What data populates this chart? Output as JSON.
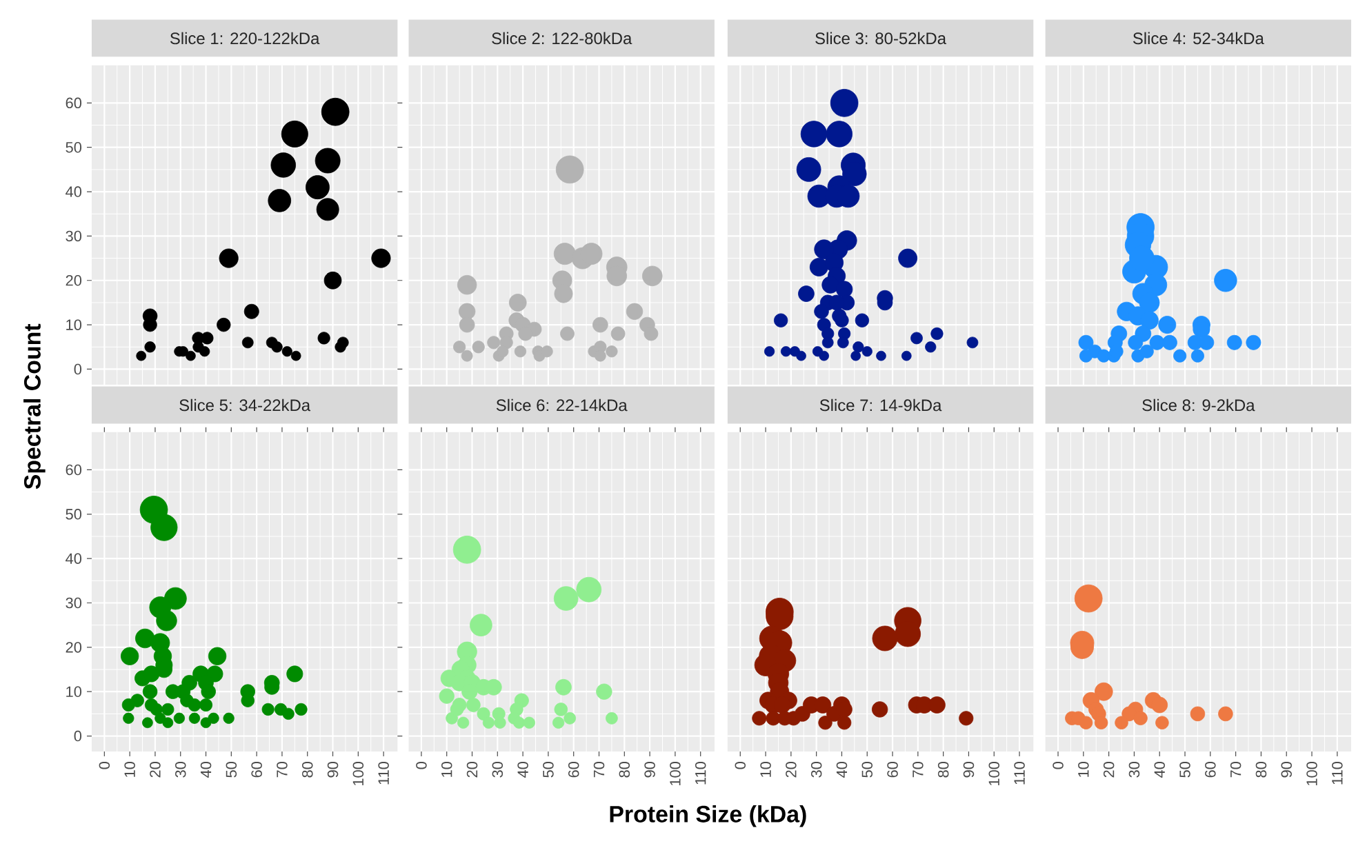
{
  "chart_data": [
    {
      "type": "bubble",
      "title": "Slice 1: 220-122kDa",
      "ylabel": "Spectral Count",
      "color": "#000000",
      "grid": true,
      "tick_labels": "y",
      "xlim": [
        -5,
        115.5
      ],
      "ylim": [
        -3.5,
        68.5
      ],
      "xticks": [
        0,
        10,
        20,
        30,
        40,
        50,
        60,
        70,
        80,
        90,
        100,
        110
      ],
      "yticks": [
        0,
        10,
        20,
        30,
        40,
        50,
        60
      ],
      "x": [
        91,
        75,
        70.5,
        88,
        84,
        69,
        88,
        49,
        109,
        90,
        58,
        47,
        18,
        18,
        18,
        14.5,
        29.5,
        31,
        34,
        37,
        40.5,
        37,
        39.5,
        56.5,
        66,
        68,
        72,
        75.5,
        86.5,
        94,
        93
      ],
      "values": [
        58,
        53,
        46,
        47,
        41,
        38,
        36,
        25,
        25,
        20,
        13,
        10,
        12,
        10,
        5,
        3,
        4,
        4,
        3,
        7,
        7,
        5,
        4,
        6,
        6,
        5,
        4,
        3,
        7,
        6,
        5
      ],
      "sizes": [
        1,
        0.92,
        0.8,
        0.82,
        0.73,
        0.68,
        0.65,
        0.47,
        0.47,
        0.39,
        0.28,
        0.24,
        0.27,
        0.24,
        0.15,
        0.12,
        0.13,
        0.13,
        0.12,
        0.19,
        0.19,
        0.15,
        0.13,
        0.16,
        0.16,
        0.15,
        0.13,
        0.12,
        0.19,
        0.16,
        0.15
      ]
    },
    {
      "type": "bubble",
      "title": "Slice 2: 122-80kDa",
      "color": "#B3B3B3",
      "grid": true,
      "tick_labels": false,
      "xlim": [
        -5,
        115.5
      ],
      "ylim": [
        -3.5,
        68.5
      ],
      "xticks": [
        0,
        10,
        20,
        30,
        40,
        50,
        60,
        70,
        80,
        90,
        100,
        110
      ],
      "yticks": [
        0,
        10,
        20,
        30,
        40,
        50,
        60
      ],
      "x": [
        58.5,
        56.5,
        63.5,
        67,
        77,
        77,
        91,
        55.5,
        56,
        18,
        18,
        18,
        38,
        37.5,
        40,
        44.5,
        41,
        33.5,
        33.5,
        84,
        89,
        90.5,
        57.5,
        70.5,
        77.5,
        15,
        18,
        22.5,
        28.5,
        30.5,
        32,
        39,
        46,
        46.5,
        49.5,
        68,
        70.5,
        70.5,
        75
      ],
      "values": [
        45,
        26,
        25,
        26,
        23,
        21,
        21,
        20,
        17,
        19,
        13,
        10,
        15,
        11,
        10,
        9,
        8,
        8,
        6,
        13,
        10,
        8,
        8,
        10,
        8,
        5,
        3,
        5,
        6,
        3,
        4,
        4,
        4,
        3,
        4,
        4,
        5,
        3,
        4
      ],
      "sizes": [
        1,
        0.61,
        0.6,
        0.61,
        0.56,
        0.52,
        0.52,
        0.49,
        0.43,
        0.48,
        0.35,
        0.3,
        0.39,
        0.31,
        0.3,
        0.27,
        0.25,
        0.25,
        0.21,
        0.35,
        0.3,
        0.25,
        0.25,
        0.3,
        0.25,
        0.19,
        0.16,
        0.19,
        0.21,
        0.16,
        0.17,
        0.17,
        0.17,
        0.16,
        0.17,
        0.17,
        0.19,
        0.16,
        0.17
      ]
    },
    {
      "type": "bubble",
      "title": "Slice 3: 80-52kDa",
      "color": "#00188F",
      "grid": true,
      "tick_labels": false,
      "xlim": [
        -5,
        115.5
      ],
      "ylim": [
        -3.5,
        68.5
      ],
      "xticks": [
        0,
        10,
        20,
        30,
        40,
        50,
        60,
        70,
        80,
        90,
        100,
        110
      ],
      "yticks": [
        0,
        10,
        20,
        30,
        40,
        50,
        60
      ],
      "x": [
        41,
        29,
        39,
        27,
        44.5,
        45,
        39,
        31,
        38,
        42.5,
        42,
        38.5,
        33,
        31,
        37,
        38,
        35.5,
        41,
        66,
        57,
        57,
        26,
        34.5,
        42,
        38,
        32,
        39,
        48,
        16,
        33,
        40,
        34.5,
        41,
        34.5,
        40.5,
        77.5,
        69.5,
        75,
        91.5,
        11.5,
        18,
        21.5,
        24,
        30.5,
        33,
        46.5,
        50,
        45.5,
        55.5,
        65.5
      ],
      "values": [
        60,
        53,
        53,
        45,
        46,
        44,
        41,
        39,
        39,
        39,
        29,
        27,
        27,
        23,
        24,
        21,
        19,
        18,
        25,
        16,
        15,
        17,
        15,
        15,
        15,
        13,
        12,
        11,
        11,
        10,
        11,
        8,
        8,
        6,
        6,
        8,
        7,
        5,
        6,
        4,
        4,
        4,
        3,
        4,
        3,
        5,
        4,
        3,
        3,
        3
      ],
      "sizes": [
        1,
        0.89,
        0.89,
        0.77,
        0.78,
        0.75,
        0.71,
        0.67,
        0.67,
        0.67,
        0.52,
        0.49,
        0.49,
        0.43,
        0.44,
        0.4,
        0.37,
        0.35,
        0.46,
        0.32,
        0.3,
        0.33,
        0.3,
        0.3,
        0.3,
        0.27,
        0.26,
        0.24,
        0.24,
        0.23,
        0.24,
        0.19,
        0.19,
        0.16,
        0.16,
        0.19,
        0.18,
        0.15,
        0.16,
        0.13,
        0.13,
        0.13,
        0.12,
        0.13,
        0.12,
        0.15,
        0.13,
        0.12,
        0.12,
        0.12
      ]
    },
    {
      "type": "bubble",
      "title": "Slice 4: 52-34kDa",
      "color": "#1E90FF",
      "grid": true,
      "tick_labels": false,
      "xlim": [
        -5,
        115.5
      ],
      "ylim": [
        -3.5,
        68.5
      ],
      "xticks": [
        0,
        10,
        20,
        30,
        40,
        50,
        60,
        70,
        80,
        90,
        100,
        110
      ],
      "yticks": [
        0,
        10,
        20,
        30,
        40,
        50,
        60
      ],
      "x": [
        32.5,
        32.5,
        31.5,
        30,
        38.5,
        33,
        38.5,
        66,
        33.5,
        36,
        27,
        31.5,
        36,
        43,
        56.5,
        56.5,
        24,
        33.5,
        22.5,
        30.5,
        39,
        44,
        54,
        58.5,
        69.5,
        77,
        11,
        14.5,
        11,
        18,
        22,
        31.5,
        35,
        48,
        55,
        23
      ],
      "values": [
        32,
        30,
        28,
        22,
        23,
        25,
        19,
        20,
        17,
        15,
        13,
        12,
        11,
        10,
        10,
        9,
        8,
        8,
        6,
        6,
        6,
        6,
        6,
        6,
        6,
        6,
        6,
        4,
        3,
        3,
        3,
        3,
        4,
        3,
        3,
        4
      ],
      "sizes": [
        1,
        0.95,
        0.88,
        0.72,
        0.75,
        0.81,
        0.65,
        0.67,
        0.58,
        0.53,
        0.47,
        0.46,
        0.42,
        0.4,
        0.4,
        0.37,
        0.33,
        0.33,
        0.28,
        0.28,
        0.28,
        0.28,
        0.28,
        0.28,
        0.28,
        0.28,
        0.28,
        0.23,
        0.21,
        0.21,
        0.21,
        0.21,
        0.23,
        0.21,
        0.21,
        0.23
      ]
    },
    {
      "type": "bubble",
      "title": "Slice 5: 34-22kDa",
      "color": "#008B00",
      "grid": true,
      "xlim": [
        -5,
        115.5
      ],
      "ylim": [
        -3.5,
        68.5
      ],
      "xticks": [
        0,
        10,
        20,
        30,
        40,
        50,
        60,
        70,
        80,
        90,
        100,
        110
      ],
      "yticks": [
        0,
        10,
        20,
        30,
        40,
        50,
        60
      ],
      "x": [
        19.5,
        23.5,
        28,
        22,
        24.5,
        16,
        22,
        10,
        44.5,
        23,
        23.5,
        23.5,
        75,
        15,
        18.5,
        38,
        43.5,
        66,
        66,
        56.5,
        56.5,
        33.5,
        40,
        27,
        31,
        32.5,
        35.5,
        18,
        18.5,
        41,
        40,
        13,
        9.5,
        20.5,
        25,
        29.5,
        35.5,
        9.5,
        17,
        25,
        40,
        43,
        49,
        64.5,
        69.5,
        72.5,
        77.5,
        22
      ],
      "values": [
        51,
        47,
        31,
        29,
        26,
        22,
        21,
        18,
        18,
        18,
        16,
        15,
        14,
        13,
        14,
        14,
        14,
        12,
        11,
        10,
        8,
        12,
        12,
        10,
        10,
        8,
        7,
        10,
        7,
        10,
        7,
        8,
        7,
        6,
        6,
        4,
        4,
        4,
        3,
        3,
        3,
        4,
        4,
        6,
        6,
        5,
        6,
        4
      ],
      "sizes": [
        1,
        0.93,
        0.64,
        0.6,
        0.55,
        0.48,
        0.47,
        0.41,
        0.41,
        0.41,
        0.37,
        0.35,
        0.34,
        0.31,
        0.34,
        0.34,
        0.34,
        0.3,
        0.28,
        0.27,
        0.22,
        0.3,
        0.3,
        0.27,
        0.27,
        0.22,
        0.21,
        0.27,
        0.21,
        0.27,
        0.21,
        0.22,
        0.21,
        0.19,
        0.19,
        0.15,
        0.15,
        0.15,
        0.14,
        0.14,
        0.14,
        0.15,
        0.15,
        0.19,
        0.19,
        0.17,
        0.19,
        0.15
      ]
    },
    {
      "type": "bubble",
      "title": "Slice 6: 22-14kDa",
      "xlabel": "Protein Size (kDa)",
      "color": "#90EE90",
      "grid": true,
      "tick_labels": "x",
      "xlim": [
        -5,
        115.5
      ],
      "ylim": [
        -3.5,
        68.5
      ],
      "xticks": [
        0,
        10,
        20,
        30,
        40,
        50,
        60,
        70,
        80,
        90,
        100,
        110
      ],
      "yticks": [
        0,
        10,
        20,
        30,
        40,
        50,
        60
      ],
      "x": [
        18,
        66,
        57,
        23.5,
        18,
        18,
        15.5,
        11,
        18,
        15,
        20,
        24.5,
        28.5,
        10,
        19,
        56,
        72,
        15,
        20.5,
        39.5,
        37.5,
        55,
        12,
        16.5,
        24.5,
        26.5,
        30.5,
        31,
        36.5,
        38.5,
        42.5,
        54,
        58.5,
        75,
        14
      ],
      "values": [
        42,
        33,
        31,
        25,
        19,
        16,
        15,
        13,
        13,
        12,
        12,
        11,
        11,
        9,
        10,
        11,
        10,
        7,
        7,
        8,
        6,
        6,
        4,
        3,
        5,
        3,
        5,
        3,
        4,
        3,
        3,
        3,
        4,
        4,
        6
      ],
      "sizes": [
        1,
        0.81,
        0.76,
        0.64,
        0.51,
        0.44,
        0.42,
        0.38,
        0.38,
        0.36,
        0.36,
        0.33,
        0.33,
        0.29,
        0.32,
        0.33,
        0.32,
        0.25,
        0.25,
        0.26,
        0.22,
        0.22,
        0.18,
        0.17,
        0.21,
        0.17,
        0.21,
        0.17,
        0.18,
        0.17,
        0.17,
        0.17,
        0.18,
        0.18,
        0.22
      ]
    },
    {
      "type": "bubble",
      "title": "Slice 7: 14-9kDa",
      "color": "#8B1A00",
      "grid": true,
      "tick_labels": "x",
      "xlim": [
        -5,
        115.5
      ],
      "ylim": [
        -3.5,
        68.5
      ],
      "xticks": [
        0,
        10,
        20,
        30,
        40,
        50,
        60,
        70,
        80,
        90,
        100,
        110
      ],
      "yticks": [
        0,
        10,
        20,
        30,
        40,
        50,
        60
      ],
      "x": [
        15.5,
        15.5,
        66,
        66,
        57,
        12.5,
        15.5,
        12,
        17.5,
        10,
        15,
        15,
        15.5,
        11,
        19,
        13,
        16.5,
        7.5,
        13,
        17.5,
        21,
        24.5,
        28,
        32.5,
        37,
        40,
        41,
        33.5,
        41,
        55,
        69.5,
        72.5,
        77.5,
        89
      ],
      "values": [
        28,
        27,
        26,
        23,
        22,
        22,
        21,
        18,
        17,
        16,
        14,
        12,
        10,
        8,
        8,
        7,
        7,
        4,
        4,
        4,
        4,
        5,
        7,
        7,
        5,
        7,
        6,
        3,
        3,
        6,
        7,
        7,
        7,
        4
      ],
      "sizes": [
        1,
        0.98,
        0.94,
        0.86,
        0.82,
        0.82,
        0.8,
        0.7,
        0.66,
        0.64,
        0.58,
        0.52,
        0.46,
        0.38,
        0.38,
        0.36,
        0.36,
        0.26,
        0.26,
        0.26,
        0.26,
        0.3,
        0.36,
        0.36,
        0.3,
        0.36,
        0.32,
        0.24,
        0.24,
        0.32,
        0.36,
        0.36,
        0.36,
        0.26
      ]
    },
    {
      "type": "bubble",
      "title": "Slice 8: 9-2kDa",
      "color": "#EE7942",
      "grid": true,
      "tick_labels": "x",
      "xlim": [
        -5,
        115.5
      ],
      "ylim": [
        -3.5,
        68.5
      ],
      "xticks": [
        0,
        10,
        20,
        30,
        40,
        50,
        60,
        70,
        80,
        90,
        100,
        110
      ],
      "yticks": [
        0,
        10,
        20,
        30,
        40,
        50,
        60
      ],
      "x": [
        12,
        9.5,
        9.5,
        18,
        13,
        15,
        16,
        5.5,
        8,
        11,
        17,
        37.5,
        40,
        30.5,
        28,
        32.5,
        25,
        41,
        55,
        66
      ],
      "values": [
        31,
        21,
        20,
        10,
        8,
        6,
        5,
        4,
        4,
        3,
        3,
        8,
        7,
        6,
        5,
        4,
        3,
        3,
        5,
        5
      ],
      "sizes": [
        1,
        0.73,
        0.69,
        0.42,
        0.35,
        0.29,
        0.27,
        0.24,
        0.24,
        0.22,
        0.22,
        0.35,
        0.33,
        0.29,
        0.27,
        0.24,
        0.22,
        0.22,
        0.27,
        0.27
      ]
    }
  ]
}
